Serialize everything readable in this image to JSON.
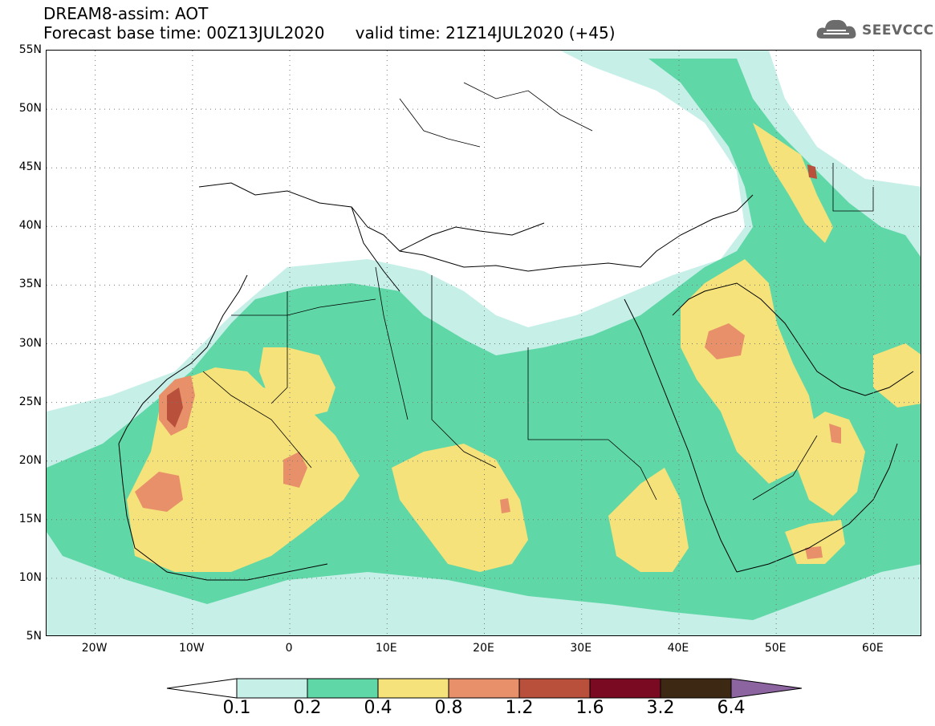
{
  "header": {
    "title_line1": "DREAM8-assim: AOT",
    "title_line2": "Forecast base time: 00Z13JUL2020      valid time: 21Z14JUL2020 (+45)"
  },
  "logo": {
    "text": "SEEVCCC",
    "icon": "cloud-icon"
  },
  "map": {
    "projection": "lat-lon",
    "lon_range": [
      -25,
      65
    ],
    "lat_range": [
      5,
      55
    ],
    "lat_labels": [
      "55N",
      "50N",
      "45N",
      "40N",
      "35N",
      "30N",
      "25N",
      "20N",
      "15N",
      "10N",
      "5N"
    ],
    "lon_labels": [
      "20W",
      "10W",
      "0",
      "10E",
      "20E",
      "30E",
      "40E",
      "50E",
      "60E"
    ],
    "grid": "dotted"
  },
  "colorbar": {
    "levels": [
      "0.1",
      "0.2",
      "0.4",
      "0.8",
      "1.2",
      "1.6",
      "3.2",
      "6.4"
    ],
    "colors": [
      "#c6efe8",
      "#5fd7a6",
      "#f5e27a",
      "#e8906a",
      "#b8503c",
      "#7a0a22",
      "#3d2814",
      "#8c64a0"
    ],
    "below_color": "#ffffff"
  }
}
